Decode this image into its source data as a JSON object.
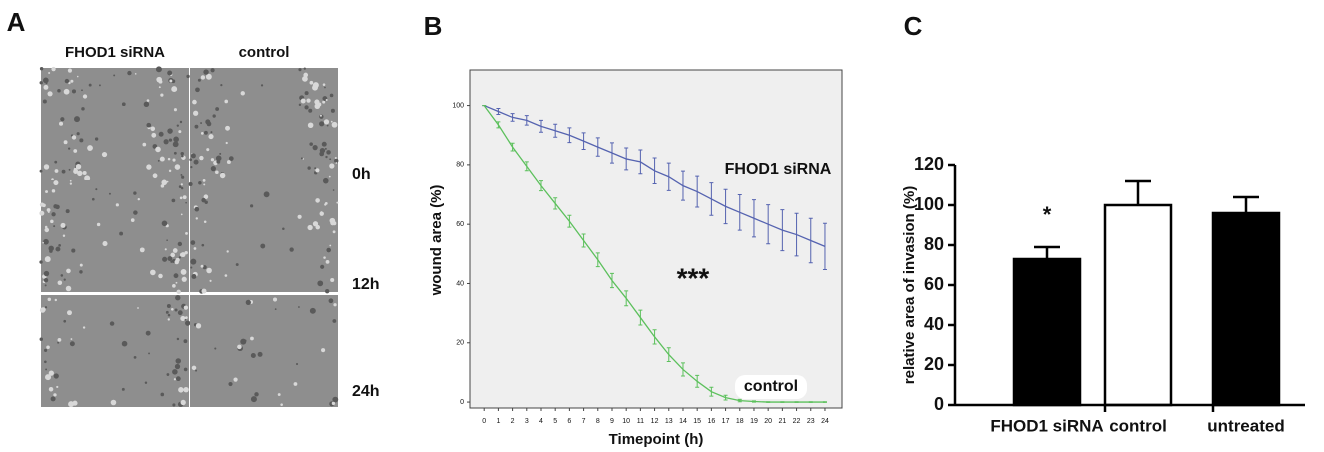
{
  "figure": {
    "panel_label": "A",
    "columns": [
      "FHOD1 siRNA",
      "control"
    ],
    "rows": [
      "0h",
      "12h",
      "24h"
    ]
  },
  "chart_data": [
    {
      "type": "line",
      "panel_label": "B",
      "xlabel": "Timepoint (h)",
      "ylabel": "wound area (%)",
      "x": [
        0,
        1,
        2,
        3,
        4,
        5,
        6,
        7,
        8,
        9,
        10,
        11,
        12,
        13,
        14,
        15,
        16,
        17,
        18,
        19,
        20,
        21,
        22,
        23,
        24
      ],
      "xlim": [
        -1,
        25.2
      ],
      "xticks": [
        0,
        1,
        2,
        3,
        4,
        5,
        6,
        7,
        8,
        9,
        10,
        11,
        12,
        13,
        14,
        15,
        16,
        17,
        18,
        19,
        20,
        21,
        22,
        23,
        24
      ],
      "ylim": [
        -2,
        112
      ],
      "yticks": [
        0,
        20,
        40,
        60,
        80,
        100
      ],
      "series": [
        {
          "name": "FHOD1 siRNA",
          "color": "#5563b0",
          "values": [
            100,
            98,
            96,
            95,
            93,
            91.5,
            90,
            88,
            86,
            84,
            82,
            81,
            78,
            76,
            73,
            71,
            68.5,
            66,
            64,
            62,
            60,
            58,
            56.5,
            54.5,
            52.5
          ],
          "errors": [
            0,
            1,
            1.3,
            1.6,
            2,
            2.2,
            2.5,
            2.8,
            3.1,
            3.4,
            3.7,
            4,
            4.3,
            4.6,
            4.9,
            5.2,
            5.5,
            5.8,
            6,
            6.3,
            6.6,
            6.9,
            7.2,
            7.5,
            7.8
          ]
        },
        {
          "name": "control",
          "color": "#5cc05c",
          "values": [
            100,
            93.5,
            86,
            79.5,
            73,
            67,
            61,
            54.5,
            48,
            41,
            35,
            28.5,
            22,
            16,
            11,
            7,
            3.5,
            1.5,
            0.5,
            0.2,
            0,
            0,
            0,
            0,
            0
          ],
          "errors": [
            0,
            1,
            1.3,
            1.5,
            1.7,
            1.9,
            2,
            2.2,
            2.3,
            2.4,
            2.5,
            2.5,
            2.4,
            2.3,
            2.2,
            2,
            1.5,
            0.8,
            0.4,
            0.2,
            0.1,
            0.1,
            0.1,
            0.1,
            0.1
          ]
        }
      ],
      "annotations": [
        "***"
      ]
    },
    {
      "type": "bar",
      "panel_label": "C",
      "ylabel": "relative area of invasion (%)",
      "categories": [
        "FHOD1 siRNA",
        "control",
        "untreated"
      ],
      "values": [
        73,
        100,
        96
      ],
      "errors": [
        6,
        12,
        8
      ],
      "colors": [
        "#000000",
        "#ffffff",
        "#000000"
      ],
      "ylim": [
        0,
        120
      ],
      "yticks": [
        0,
        20,
        40,
        60,
        80,
        100,
        120
      ],
      "annotations": [
        "*"
      ]
    }
  ]
}
